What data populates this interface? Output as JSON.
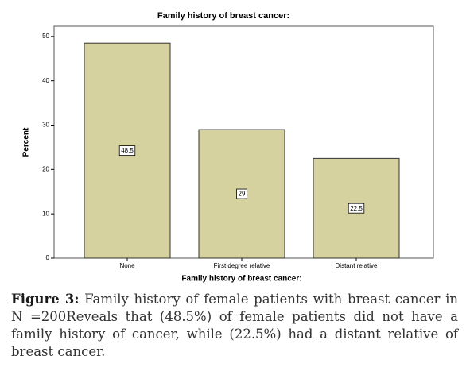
{
  "chart_data": {
    "type": "bar",
    "title": "Family history of breast cancer:",
    "x_label": "Family history of breast cancer:",
    "y_label": "Percent",
    "categories": [
      "None",
      "First degree relative",
      "Distant relative"
    ],
    "values": [
      48.5,
      29,
      22.5
    ],
    "color": "#d6d29f",
    "ylim": [
      0,
      52.3
    ],
    "yticks": [
      0,
      10,
      20,
      30,
      40,
      50
    ],
    "grid": false
  },
  "caption": {
    "label": "Figure 3:",
    "text": "Family history of female patients with breast cancer in N =200Reveals that (48.5%) of female patients did not have a family history of cancer, while (22.5%) had a distant relative of breast cancer."
  }
}
